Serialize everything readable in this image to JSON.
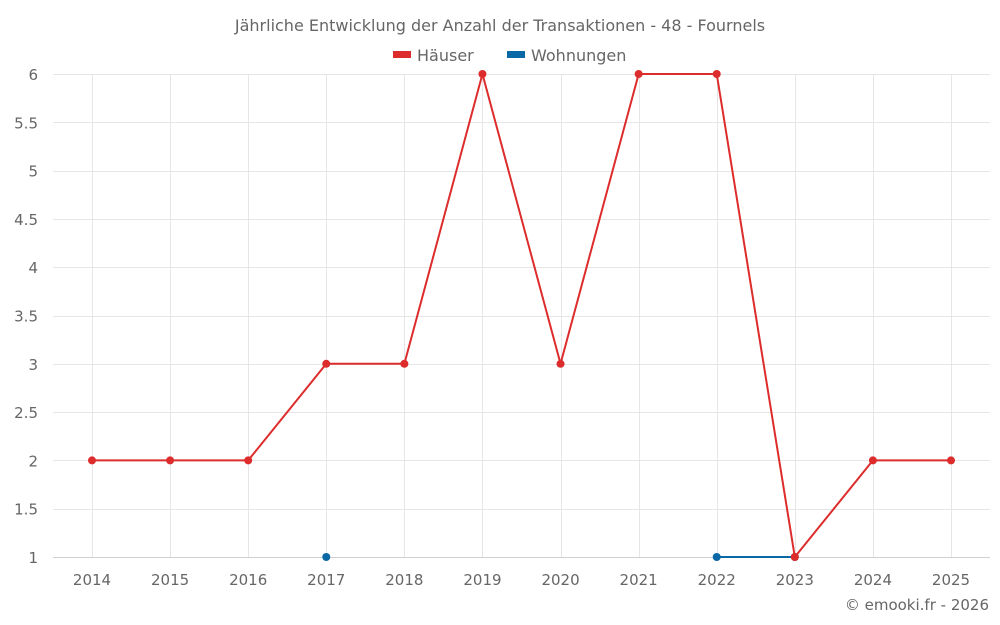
{
  "chart_data": {
    "type": "line",
    "title": "Jährliche Entwicklung der Anzahl der Transaktionen - 48 - Fournels",
    "xlabel": "",
    "ylabel": "",
    "categories": [
      "2014",
      "2015",
      "2016",
      "2017",
      "2018",
      "2019",
      "2020",
      "2021",
      "2022",
      "2023",
      "2024",
      "2025"
    ],
    "series": [
      {
        "name": "Häuser",
        "color": "#dd2c2c",
        "values": [
          2,
          2,
          2,
          3,
          3,
          6,
          3,
          6,
          6,
          1,
          2,
          2
        ]
      },
      {
        "name": "Wohnungen",
        "color": "#0b68a6",
        "values": [
          null,
          null,
          null,
          1,
          null,
          null,
          null,
          null,
          1,
          1,
          null,
          null
        ]
      }
    ],
    "ylim": [
      1,
      6
    ],
    "yticks": [
      "1",
      "1.5",
      "2",
      "2.5",
      "3",
      "3.5",
      "4",
      "4.5",
      "5",
      "5.5",
      "6"
    ],
    "grid": true,
    "legend_position": "top"
  },
  "credit": "© emooki.fr - 2026"
}
